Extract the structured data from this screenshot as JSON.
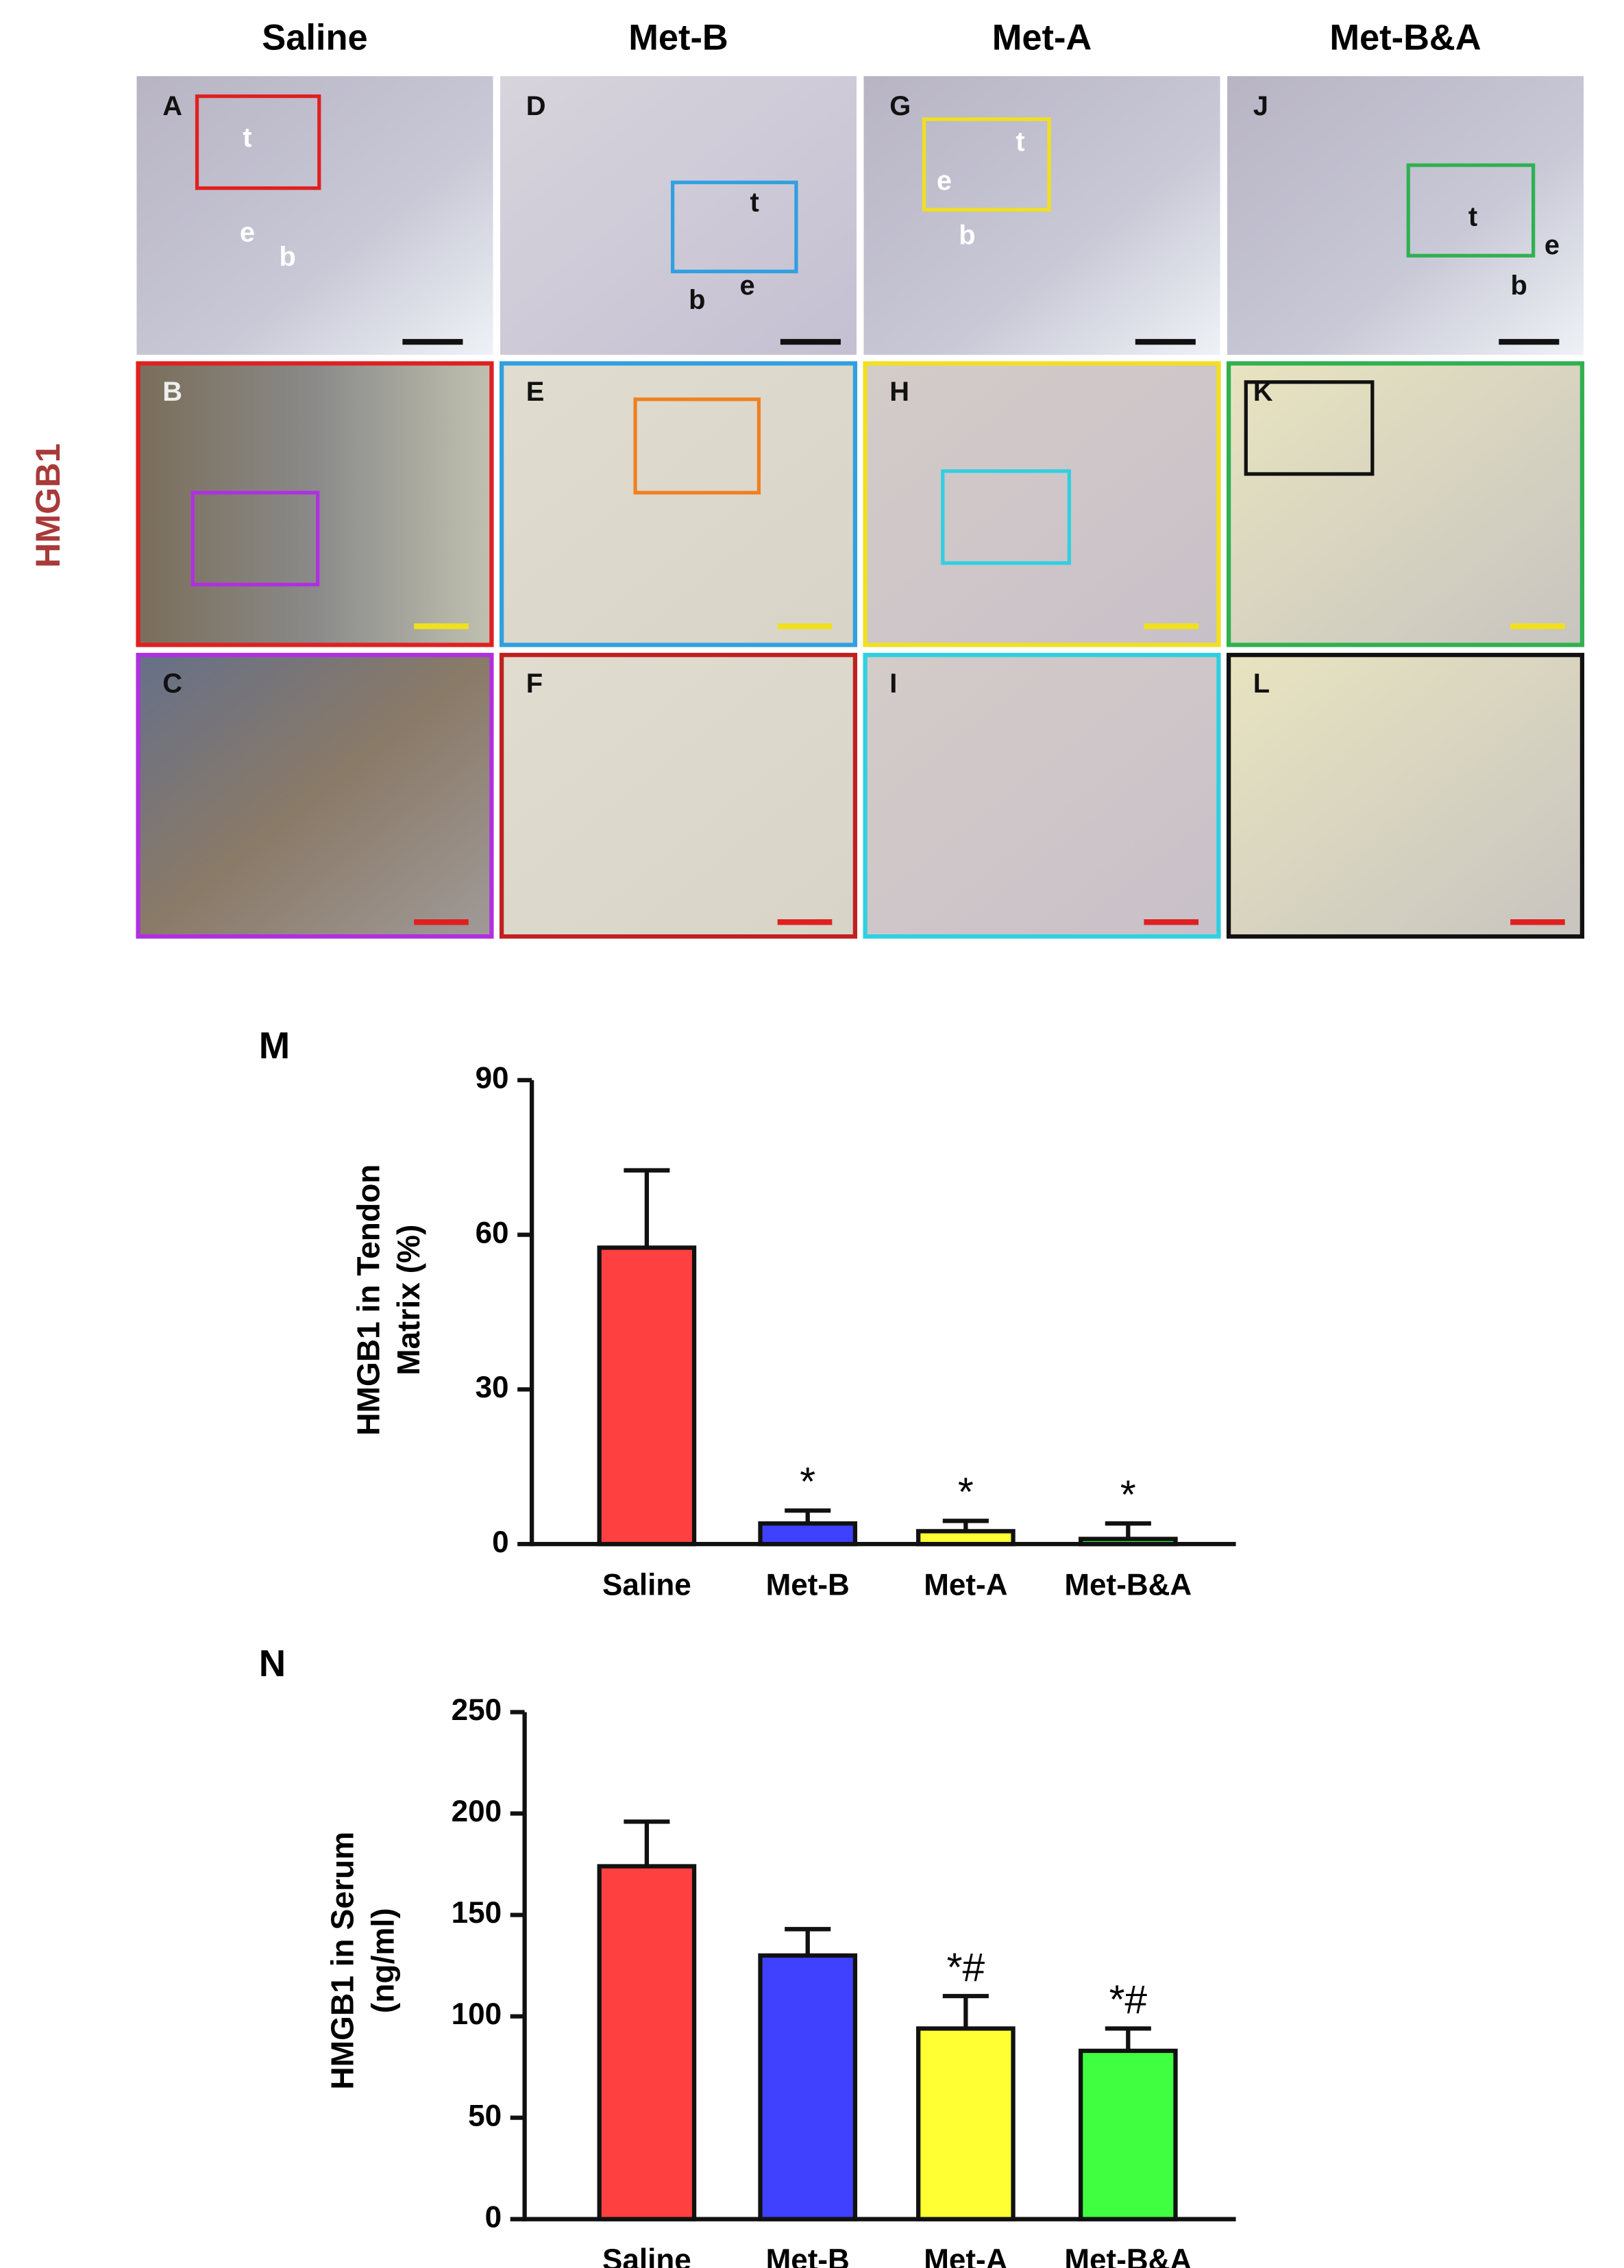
{
  "figure": {
    "column_titles": [
      "Saline",
      "Met-B",
      "Met-A",
      "Met-B&A"
    ],
    "row_label": "HMGB1",
    "panels": [
      {
        "letter": "A",
        "labels": [
          "t",
          "e",
          "b"
        ]
      },
      {
        "letter": "D",
        "labels": [
          "t",
          "b",
          "e"
        ]
      },
      {
        "letter": "G",
        "labels": [
          "t",
          "e",
          "b"
        ]
      },
      {
        "letter": "J",
        "labels": [
          "t",
          "e",
          "b"
        ]
      },
      {
        "letter": "B"
      },
      {
        "letter": "E"
      },
      {
        "letter": "H"
      },
      {
        "letter": "K"
      },
      {
        "letter": "C"
      },
      {
        "letter": "F"
      },
      {
        "letter": "I"
      },
      {
        "letter": "L"
      }
    ]
  },
  "chart_data": [
    {
      "type": "bar",
      "panel_label": "M",
      "ylabel": [
        "HMGB1 in Tendon",
        "Matrix (%)"
      ],
      "categories": [
        "Saline",
        "Met-B",
        "Met-A",
        "Met-B&A"
      ],
      "values": [
        57.5,
        4,
        2.5,
        1
      ],
      "errors": [
        15,
        2.5,
        2,
        3
      ],
      "colors": [
        "#ff4040",
        "#4040ff",
        "#ffff33",
        "#33ee33"
      ],
      "annotations": [
        null,
        "*",
        "*",
        "*"
      ],
      "ylim": [
        0,
        90
      ],
      "yticks": [
        0,
        30,
        60,
        90
      ]
    },
    {
      "type": "bar",
      "panel_label": "N",
      "ylabel": [
        "HMGB1 in Serum",
        "(ng/ml)"
      ],
      "categories": [
        "Saline",
        "Met-B",
        "Met-A",
        "Met-B&A"
      ],
      "values": [
        174,
        130,
        94,
        83
      ],
      "errors": [
        22,
        13,
        16,
        11
      ],
      "colors": [
        "#ff4040",
        "#4040ff",
        "#ffff33",
        "#40ff40"
      ],
      "annotations": [
        null,
        null,
        "*#",
        "*#"
      ],
      "ylim": [
        0,
        250
      ],
      "yticks": [
        0,
        50,
        100,
        150,
        200,
        250
      ]
    }
  ]
}
